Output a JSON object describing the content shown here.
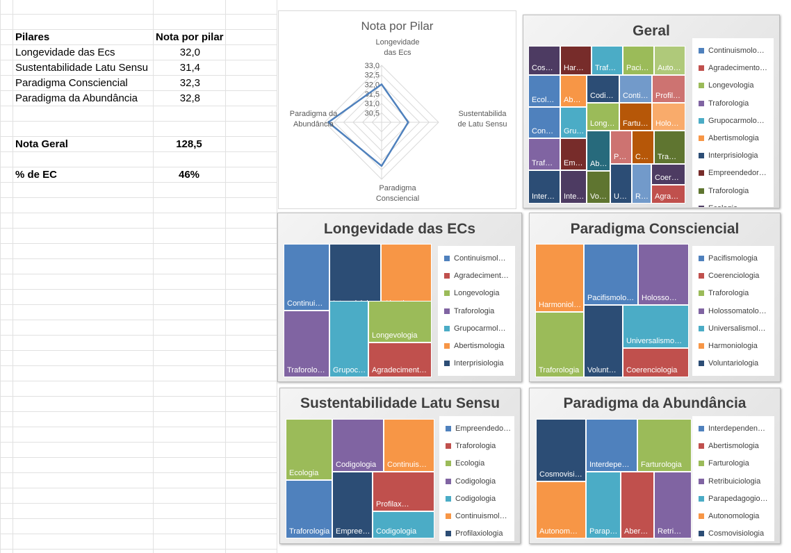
{
  "sheet": {
    "rows": [
      {
        "label": "Pilares",
        "value": "Nota por pilar",
        "bold": true
      },
      {
        "label": "Longevidade das Ecs",
        "value": "32,0"
      },
      {
        "label": "Sustentabilidade Latu Sensu",
        "value": "31,4"
      },
      {
        "label": "Paradigma Consciencial",
        "value": "32,3"
      },
      {
        "label": "Paradigma da Abundância",
        "value": "32,8"
      }
    ],
    "nota_geral": {
      "label": "Nota Geral",
      "value": "128,5"
    },
    "pct_ec": {
      "label": "% de EC",
      "value": "46%"
    }
  },
  "chart_data": [
    {
      "type": "radar",
      "title": "Nota por Pilar",
      "categories": [
        "Longevidade das Ecs",
        "Sustentabilidade Latu Sensu",
        "Paradigma Consciencial",
        "Paradigma da Abundância"
      ],
      "category_lines": [
        [
          "Longevidade",
          "das Ecs"
        ],
        [
          "Sustentabilida",
          "de Latu Sensu"
        ],
        [
          "Paradigma",
          "Consciencial"
        ],
        [
          "Paradigma da",
          "Abundância"
        ]
      ],
      "values": [
        32.0,
        31.4,
        32.3,
        32.8
      ],
      "rlim": [
        30.0,
        33.0
      ],
      "ticks": [
        "30,5",
        "31,0",
        "31,5",
        "32,0",
        "32,5",
        "33,0"
      ],
      "line_color": "#4f81bd"
    },
    {
      "type": "treemap",
      "title": "Geral",
      "tiles": [
        "Cosm…",
        "Har…",
        "Traf…",
        "Paci…",
        "Auto…",
        "Ecol…",
        "Abe…",
        "Codi…",
        "Conti…",
        "Profil…",
        "Con…",
        "Gru…",
        "Long…",
        "Fartu…",
        "Holo…",
        "Traf…",
        "Emp…",
        "Ab…",
        "Pa…",
        "Co…",
        "Tra…",
        "Inter…",
        "Inte…",
        "Vo…",
        "U…",
        "R…",
        "Coer…",
        "Agra…"
      ],
      "legend": [
        "Continuismolo…",
        "Agradecimento…",
        "Longevologia",
        "Traforologia",
        "Grupocarmolo…",
        "Abertismologia",
        "Interprisiologia",
        "Empreendedor…",
        "Traforologia",
        "Ecologia"
      ]
    },
    {
      "type": "treemap",
      "title": "Longevidade das ECs",
      "tiles": [
        "Continui…",
        "Interprisiol…",
        "Abertismo…",
        "Traforolo…",
        "Grupoc…",
        "Longevologia",
        "Agradeciment…"
      ],
      "legend": [
        "Continuismol…",
        "Agradeciment…",
        "Longevologia",
        "Traforologia",
        "Grupocarmol…",
        "Abertismologia",
        "Interprisiologia"
      ]
    },
    {
      "type": "treemap",
      "title": "Paradigma Consciencial",
      "tiles": [
        "Harmoniol…",
        "Pacifismolo…",
        "Holosso…",
        "Traforologia",
        "Volunt…",
        "Universalismo…",
        "Coerenciologia"
      ],
      "legend": [
        "Pacifismologia",
        "Coerenciologia",
        "Traforologia",
        "Holossomatolo…",
        "Universalismol…",
        "Harmoniologia",
        "Voluntariologia"
      ]
    },
    {
      "type": "treemap",
      "title": "Sustentabilidade Latu Sensu",
      "tiles": [
        "Ecologia",
        "Codigologia",
        "Continuis…",
        "Traforologia",
        "Empreen…",
        "Profilax…",
        "Codigologia"
      ],
      "legend": [
        "Empreendedo…",
        "Traforologia",
        "Ecologia",
        "Codigologia",
        "Codigologia",
        "Continuismol…",
        "Profilaxiologia"
      ]
    },
    {
      "type": "treemap",
      "title": "Paradigma da Abundância",
      "tiles": [
        "Cosmovisi…",
        "Interdepe…",
        "Farturologia",
        "Autonom…",
        "Parap…",
        "Aber…",
        "Retri…"
      ],
      "legend": [
        "Interdependen…",
        "Abertismologia",
        "Farturologia",
        "Retribuiciologia",
        "Parapedagogio…",
        "Autonomologia",
        "Cosmovisiologia"
      ]
    }
  ],
  "colors": {
    "palette": [
      "#4f81bd",
      "#c0504d",
      "#9bbb59",
      "#8064a2",
      "#4bacc6",
      "#f79646",
      "#2c4d75",
      "#772c2a",
      "#5f7530",
      "#4d3b62",
      "#276a7c",
      "#b65708",
      "#729aca",
      "#cd7371",
      "#afc97a",
      "#9983b5",
      "#6fbdd1",
      "#f9ab6b"
    ],
    "radar_line": "#4f81bd"
  }
}
